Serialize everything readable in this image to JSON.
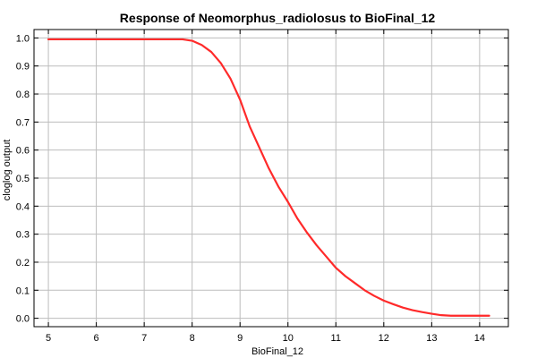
{
  "chart_data": {
    "type": "line",
    "title": "Response of Neomorphus_radiolosus to BioFinal_12",
    "xlabel": "BioFinal_12",
    "ylabel": "cloglog output",
    "xlim": [
      4.7,
      14.6
    ],
    "ylim": [
      -0.03,
      1.03
    ],
    "xticks": [
      5,
      6,
      7,
      8,
      9,
      10,
      11,
      12,
      13,
      14
    ],
    "yticks": [
      0.0,
      0.1,
      0.2,
      0.3,
      0.4,
      0.5,
      0.6,
      0.7,
      0.8,
      0.9,
      1.0
    ],
    "ytick_labels": [
      "0.0",
      "0.1",
      "0.2",
      "0.3",
      "0.4",
      "0.5",
      "0.6",
      "0.7",
      "0.8",
      "0.9",
      "1.0"
    ],
    "grid": true,
    "series": [
      {
        "color": "#ff2a2a",
        "x": [
          5.0,
          6.0,
          7.0,
          7.8,
          8.0,
          8.2,
          8.4,
          8.6,
          8.8,
          9.0,
          9.2,
          9.4,
          9.6,
          9.8,
          10.0,
          10.2,
          10.4,
          10.6,
          10.8,
          11.0,
          11.2,
          11.4,
          11.6,
          11.8,
          12.0,
          12.2,
          12.4,
          12.6,
          12.8,
          13.0,
          13.2,
          13.4,
          13.8,
          14.2
        ],
        "y": [
          0.995,
          0.995,
          0.995,
          0.995,
          0.99,
          0.975,
          0.95,
          0.91,
          0.855,
          0.78,
          0.685,
          0.61,
          0.535,
          0.47,
          0.415,
          0.355,
          0.305,
          0.26,
          0.22,
          0.18,
          0.15,
          0.125,
          0.1,
          0.08,
          0.063,
          0.05,
          0.038,
          0.029,
          0.022,
          0.016,
          0.011,
          0.009,
          0.009,
          0.009
        ]
      }
    ]
  }
}
